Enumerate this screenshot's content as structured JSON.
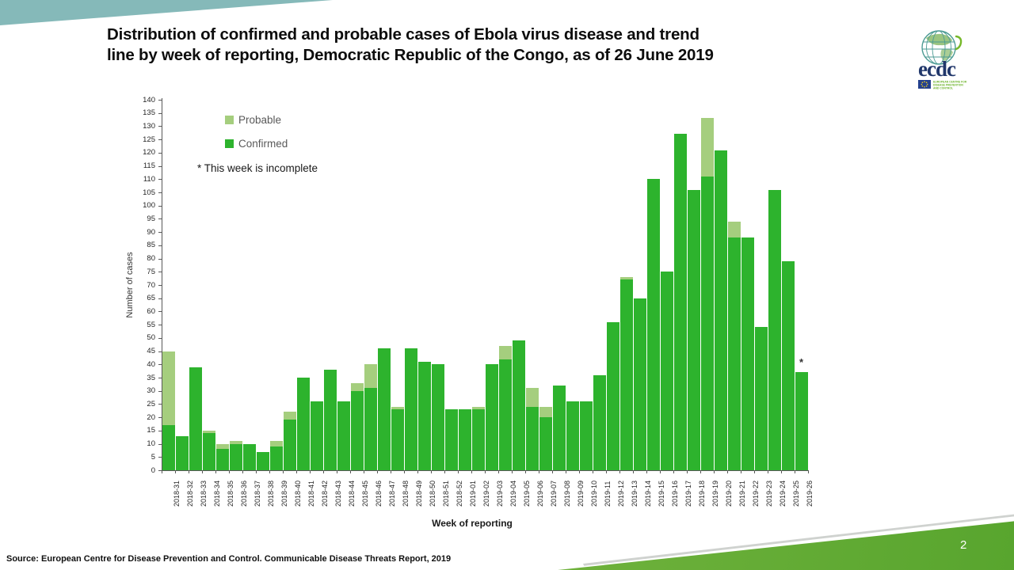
{
  "slide": {
    "title": "Distribution of confirmed and probable cases of Ebola virus disease and trend\nline by week of reporting, Democratic Republic of the Congo, as of 26 June 2019",
    "source": "Source: European Centre for Disease Prevention and Control. Communicable Disease Threats Report, 2019",
    "page_number": "2"
  },
  "logo": {
    "wordmark": "ecdc",
    "org_line1": "EUROPEAN CENTRE FOR",
    "org_line2": "DISEASE PREVENTION",
    "org_line3": "AND CONTROL"
  },
  "chart_data": {
    "type": "bar",
    "stacked": true,
    "xlabel": "Week of reporting",
    "ylabel": "Number of cases",
    "ylim": [
      0,
      140
    ],
    "ytick_step": 5,
    "grid": false,
    "legend_position": "top-left-inside",
    "note": "* This week is incomplete",
    "incomplete_week": "2019-26",
    "incomplete_symbol": "*",
    "legend": [
      {
        "label": "Probable",
        "color": "#a5ce7e"
      },
      {
        "label": "Confirmed",
        "color": "#2db32d"
      }
    ],
    "categories": [
      "2018-31",
      "2018-32",
      "2018-33",
      "2018-34",
      "2018-35",
      "2018-36",
      "2018-37",
      "2018-38",
      "2018-39",
      "2018-40",
      "2018-41",
      "2018-42",
      "2018-43",
      "2018-44",
      "2018-45",
      "2018-46",
      "2018-47",
      "2018-48",
      "2018-49",
      "2018-50",
      "2018-51",
      "2018-52",
      "2019-01",
      "2019-02",
      "2019-03",
      "2019-04",
      "2019-05",
      "2019-06",
      "2019-07",
      "2019-08",
      "2019-09",
      "2019-10",
      "2019-11",
      "2019-12",
      "2019-13",
      "2019-14",
      "2019-15",
      "2019-16",
      "2019-17",
      "2019-18",
      "2019-19",
      "2019-20",
      "2019-21",
      "2019-22",
      "2019-23",
      "2019-24",
      "2019-25",
      "2019-26"
    ],
    "series": [
      {
        "name": "Confirmed",
        "color": "#2db32d",
        "values": [
          17,
          13,
          39,
          14,
          8,
          10,
          10,
          7,
          9,
          19,
          35,
          26,
          38,
          26,
          30,
          31,
          46,
          23,
          46,
          41,
          40,
          23,
          23,
          23,
          40,
          42,
          49,
          24,
          20,
          32,
          26,
          26,
          36,
          56,
          72,
          65,
          110,
          75,
          127,
          106,
          111,
          121,
          88,
          88,
          54,
          106,
          79,
          37
        ]
      },
      {
        "name": "Probable",
        "color": "#a5ce7e",
        "values": [
          28,
          0,
          0,
          1,
          2,
          1,
          0,
          0,
          2,
          3,
          0,
          0,
          0,
          0,
          3,
          9,
          0,
          1,
          0,
          0,
          0,
          0,
          0,
          1,
          0,
          5,
          0,
          7,
          4,
          0,
          0,
          0,
          0,
          0,
          1,
          0,
          0,
          0,
          0,
          0,
          22,
          0,
          6,
          0,
          0,
          0,
          0,
          0
        ]
      }
    ]
  },
  "colors": {
    "teal_wedge": "#85b9b9",
    "footer_band_light": "#9bc95e",
    "footer_band_dark": "#58a52e",
    "axis": "#595959"
  }
}
